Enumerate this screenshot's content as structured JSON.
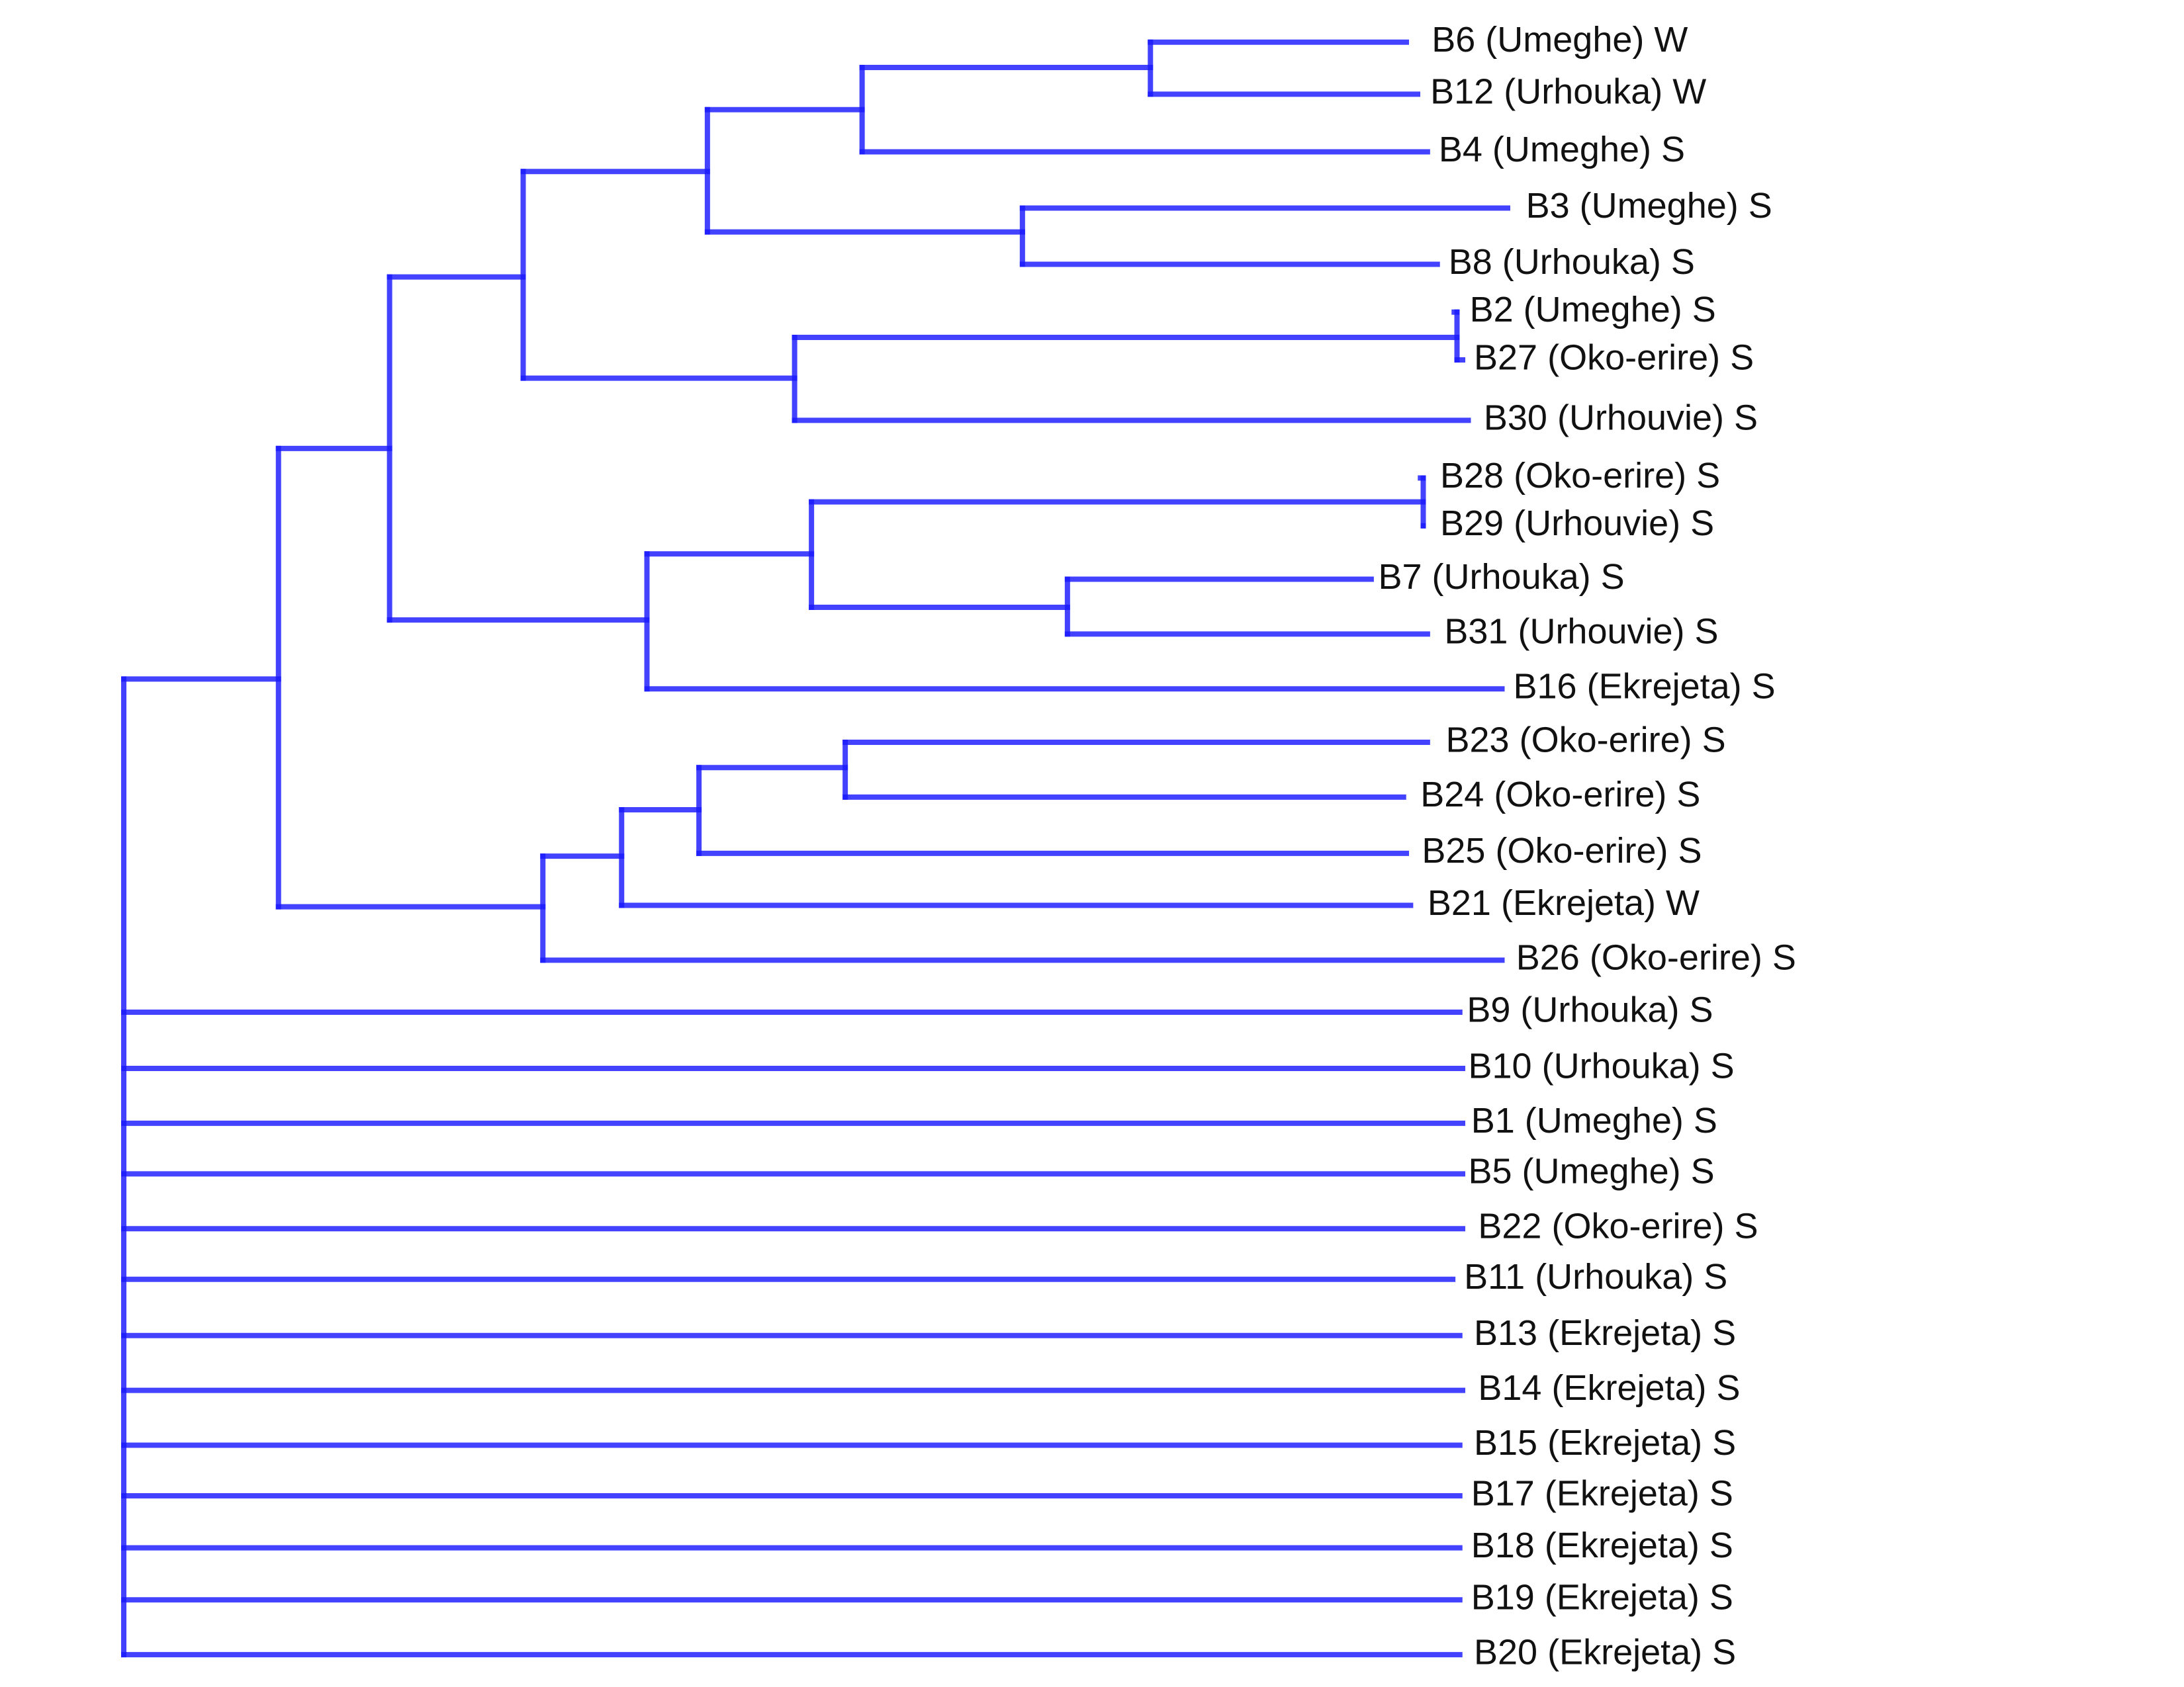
{
  "tree": {
    "name": "root",
    "children": [
      {
        "name": "cluster-A",
        "children": [
          {
            "name": "cluster-A1",
            "children": [
              {
                "name": "cluster-A1a",
                "children": [
                  {
                    "name": "cluster-A1a-i",
                    "children": [
                      {
                        "name": "cluster-A1a-i-x",
                        "children": [
                          {
                            "name": "cluster-B6-B12",
                            "children": [
                              {
                                "label": "B6 (Umeghe) W"
                              },
                              {
                                "label": "B12 (Urhouka) W"
                              }
                            ]
                          },
                          {
                            "label": "B4 (Umeghe) S"
                          }
                        ]
                      },
                      {
                        "name": "cluster-B3-B8",
                        "children": [
                          {
                            "label": "B3 (Umeghe) S"
                          },
                          {
                            "label": "B8 (Urhouka) S"
                          }
                        ]
                      }
                    ]
                  },
                  {
                    "name": "cluster-A1a-ii",
                    "children": [
                      {
                        "name": "cluster-B2-B27",
                        "children": [
                          {
                            "label": "B2 (Umeghe) S"
                          },
                          {
                            "label": "B27 (Oko-erire) S"
                          }
                        ]
                      },
                      {
                        "label": "B30 (Urhouvie) S"
                      }
                    ]
                  }
                ]
              },
              {
                "name": "cluster-A1b",
                "children": [
                  {
                    "name": "cluster-A1b-i",
                    "children": [
                      {
                        "name": "cluster-B28-B29",
                        "children": [
                          {
                            "label": "B28 (Oko-erire) S"
                          },
                          {
                            "label": "B29 (Urhouvie) S"
                          }
                        ]
                      },
                      {
                        "name": "cluster-B7-B31",
                        "children": [
                          {
                            "label": "B7 (Urhouka) S"
                          },
                          {
                            "label": "B31 (Urhouvie) S"
                          }
                        ]
                      }
                    ]
                  },
                  {
                    "label": "B16 (Ekrejeta) S"
                  }
                ]
              }
            ]
          },
          {
            "name": "cluster-A2",
            "children": [
              {
                "name": "cluster-A2a",
                "children": [
                  {
                    "name": "cluster-A2a-i",
                    "children": [
                      {
                        "name": "cluster-B23-B24",
                        "children": [
                          {
                            "label": "B23 (Oko-erire) S"
                          },
                          {
                            "label": "B24 (Oko-erire) S"
                          }
                        ]
                      },
                      {
                        "label": "B25 (Oko-erire) S"
                      }
                    ]
                  },
                  {
                    "label": "B21 (Ekrejeta) W"
                  }
                ]
              },
              {
                "label": "B26 (Oko-erire) S"
              }
            ]
          }
        ]
      },
      {
        "label": "B9 (Urhouka) S"
      },
      {
        "label": "B10 (Urhouka) S"
      },
      {
        "label": "B1 (Umeghe) S"
      },
      {
        "label": "B5 (Umeghe) S"
      },
      {
        "label": "B22 (Oko-erire) S"
      },
      {
        "label": "B11 (Urhouka) S"
      },
      {
        "label": "B13 (Ekrejeta) S"
      },
      {
        "label": "B14 (Ekrejeta) S"
      },
      {
        "label": "B15 (Ekrejeta) S"
      },
      {
        "label": "B17 (Ekrejeta) S"
      },
      {
        "label": "B18 (Ekrejeta) S"
      },
      {
        "label": "B19 (Ekrejeta) S"
      },
      {
        "label": "B20 (Ekrejeta) S"
      }
    ]
  },
  "colors": {
    "branch": "#1a1aff",
    "label": "#111111",
    "background": "#ffffff"
  }
}
